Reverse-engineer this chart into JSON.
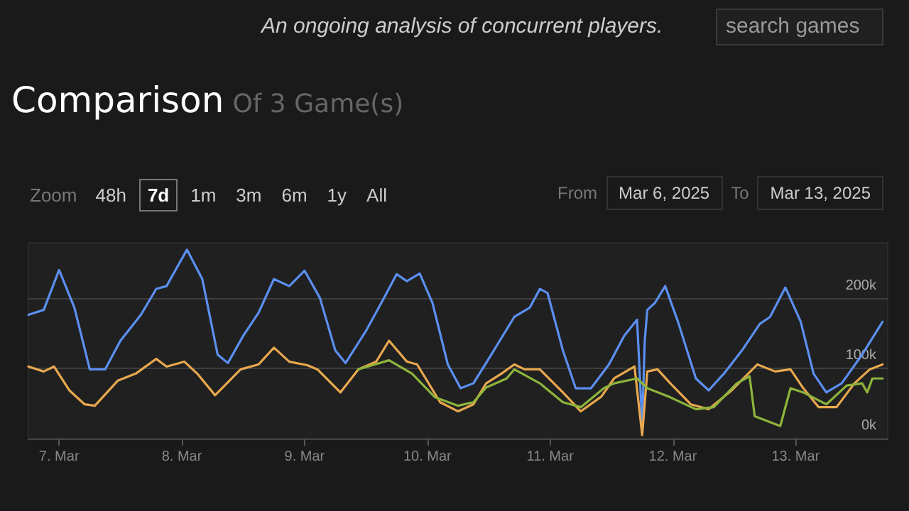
{
  "chart_data": {
    "type": "line",
    "title": "Comparison",
    "subtitle": "Of 3 Game(s)",
    "annotations": [
      "An ongoing analysis of concurrent players.",
      "search games",
      "Zoom",
      "48h",
      "7d",
      "1m",
      "3m",
      "6m",
      "1y",
      "All",
      "From",
      "Mar 6, 2025",
      "To",
      "Mar 13, 2025"
    ],
    "xlim": [
      "2025-03-06T18:00",
      "2025-03-13T18:00"
    ],
    "xticks": [
      {
        "value": "2025-03-07",
        "label": "7. Mar"
      },
      {
        "value": "2025-03-08",
        "label": "8. Mar"
      },
      {
        "value": "2025-03-09",
        "label": "9. Mar"
      },
      {
        "value": "2025-03-10",
        "label": "10. Mar"
      },
      {
        "value": "2025-03-11",
        "label": "11. Mar"
      },
      {
        "value": "2025-03-12",
        "label": "12. Mar"
      },
      {
        "value": "2025-03-13",
        "label": "13. Mar"
      }
    ],
    "ylim": [
      0,
      280000
    ],
    "yticks": [
      {
        "value": 0,
        "label": "0k"
      },
      {
        "value": 100000,
        "label": "100k"
      },
      {
        "value": 200000,
        "label": "200k"
      }
    ],
    "grid": "y",
    "marker": "none",
    "line_style": "solid",
    "series": [
      {
        "color": "#5b8ff0",
        "x": [
          "2025-03-06T18:00",
          "2025-03-06T21:00",
          "2025-03-07T00:00",
          "2025-03-07T03:00",
          "2025-03-07T06:00",
          "2025-03-07T09:00",
          "2025-03-07T12:00",
          "2025-03-07T16:00",
          "2025-03-07T19:00",
          "2025-03-07T21:00",
          "2025-03-08T01:00",
          "2025-03-08T04:00",
          "2025-03-08T07:00",
          "2025-03-08T09:00",
          "2025-03-08T12:00",
          "2025-03-08T15:00",
          "2025-03-08T18:00",
          "2025-03-08T21:00",
          "2025-03-09T00:00",
          "2025-03-09T03:00",
          "2025-03-09T06:00",
          "2025-03-09T08:00",
          "2025-03-09T12:00",
          "2025-03-09T15:00",
          "2025-03-09T18:00",
          "2025-03-09T20:00",
          "2025-03-09T22:30",
          "2025-03-10T01:00",
          "2025-03-10T04:00",
          "2025-03-10T06:30",
          "2025-03-10T09:00",
          "2025-03-10T12:30",
          "2025-03-10T17:00",
          "2025-03-10T20:00",
          "2025-03-10T22:00",
          "2025-03-10T23:30",
          "2025-03-11T02:30",
          "2025-03-11T05:00",
          "2025-03-11T08:00",
          "2025-03-11T11:30",
          "2025-03-11T14:30",
          "2025-03-11T17:00",
          "2025-03-11T18:00",
          "2025-03-11T18:30",
          "2025-03-11T19:00",
          "2025-03-11T20:30",
          "2025-03-11T22:30",
          "2025-03-12T01:00",
          "2025-03-12T04:30",
          "2025-03-12T07:00",
          "2025-03-12T10:00",
          "2025-03-12T13:30",
          "2025-03-12T17:00",
          "2025-03-12T19:00",
          "2025-03-12T22:00",
          "2025-03-13T01:00",
          "2025-03-13T03:30",
          "2025-03-13T06:00",
          "2025-03-13T09:00",
          "2025-03-13T13:00",
          "2025-03-13T17:00"
        ],
        "values": [
          177000,
          184000,
          241000,
          187000,
          99000,
          99000,
          140000,
          177000,
          214000,
          218000,
          270000,
          228000,
          120000,
          108000,
          147000,
          180000,
          228000,
          218000,
          240000,
          201000,
          126000,
          108000,
          154000,
          194000,
          235000,
          225000,
          236000,
          194000,
          106000,
          72000,
          79000,
          120000,
          174000,
          187000,
          214000,
          208000,
          126000,
          72000,
          72000,
          106000,
          147000,
          170000,
          20000,
          140000,
          184000,
          194000,
          218000,
          167000,
          86000,
          69000,
          93000,
          126000,
          164000,
          174000,
          216000,
          167000,
          93000,
          66000,
          79000,
          120000,
          167000
        ]
      },
      {
        "color": "#e8a84e",
        "x": [
          "2025-03-06T18:00",
          "2025-03-06T21:00",
          "2025-03-06T23:00",
          "2025-03-07T02:00",
          "2025-03-07T05:00",
          "2025-03-07T07:00",
          "2025-03-07T11:30",
          "2025-03-07T15:00",
          "2025-03-07T19:00",
          "2025-03-07T21:00",
          "2025-03-08T00:30",
          "2025-03-08T03:00",
          "2025-03-08T06:30",
          "2025-03-08T11:30",
          "2025-03-08T15:00",
          "2025-03-08T18:00",
          "2025-03-08T21:00",
          "2025-03-09T00:30",
          "2025-03-09T02:30",
          "2025-03-09T07:00",
          "2025-03-09T10:30",
          "2025-03-09T14:00",
          "2025-03-09T16:30",
          "2025-03-09T20:00",
          "2025-03-09T22:00",
          "2025-03-10T02:30",
          "2025-03-10T06:00",
          "2025-03-10T09:00",
          "2025-03-10T11:30",
          "2025-03-10T14:30",
          "2025-03-10T17:00",
          "2025-03-10T19:00",
          "2025-03-10T22:00",
          "2025-03-11T02:30",
          "2025-03-11T06:00",
          "2025-03-11T10:00",
          "2025-03-11T12:30",
          "2025-03-11T16:30",
          "2025-03-11T18:00",
          "2025-03-11T19:00",
          "2025-03-11T21:00",
          "2025-03-11T23:30",
          "2025-03-12T03:30",
          "2025-03-12T07:00",
          "2025-03-12T11:30",
          "2025-03-12T16:30",
          "2025-03-12T20:00",
          "2025-03-12T23:00",
          "2025-03-13T01:30",
          "2025-03-13T04:30",
          "2025-03-13T08:00",
          "2025-03-13T11:30",
          "2025-03-13T14:30",
          "2025-03-13T17:00"
        ],
        "values": [
          103000,
          96000,
          103000,
          69000,
          49000,
          47000,
          83000,
          93000,
          114000,
          103000,
          110000,
          93000,
          62000,
          99000,
          106000,
          130000,
          110000,
          105000,
          99000,
          66000,
          99000,
          110000,
          140000,
          110000,
          106000,
          52000,
          39000,
          49000,
          79000,
          93000,
          106000,
          99000,
          99000,
          66000,
          39000,
          60000,
          86000,
          103000,
          5000,
          96000,
          99000,
          79000,
          49000,
          42000,
          69000,
          106000,
          96000,
          99000,
          72000,
          45000,
          45000,
          79000,
          99000,
          106000
        ]
      },
      {
        "color": "#8db43c",
        "x": [
          "2025-03-09T10:30",
          "2025-03-09T16:30",
          "2025-03-09T21:00",
          "2025-03-10T01:30",
          "2025-03-10T06:00",
          "2025-03-10T09:00",
          "2025-03-10T11:30",
          "2025-03-10T15:30",
          "2025-03-10T17:00",
          "2025-03-10T22:00",
          "2025-03-11T02:30",
          "2025-03-11T06:00",
          "2025-03-11T10:30",
          "2025-03-11T12:30",
          "2025-03-11T17:00",
          "2025-03-11T19:00",
          "2025-03-11T23:30",
          "2025-03-12T04:30",
          "2025-03-12T08:00",
          "2025-03-12T12:30",
          "2025-03-12T15:00",
          "2025-03-12T16:00",
          "2025-03-12T21:00",
          "2025-03-12T23:00",
          "2025-03-13T01:30",
          "2025-03-13T06:00",
          "2025-03-13T10:00",
          "2025-03-13T13:00",
          "2025-03-13T14:00",
          "2025-03-13T15:00",
          "2025-03-13T17:00"
        ],
        "values": [
          99000,
          112000,
          93000,
          59000,
          47000,
          52000,
          73000,
          86000,
          99000,
          79000,
          52000,
          45000,
          72000,
          79000,
          86000,
          72000,
          59000,
          42000,
          45000,
          79000,
          89000,
          32000,
          18000,
          72000,
          66000,
          49000,
          76000,
          79000,
          66000,
          86000,
          86000
        ]
      }
    ]
  }
}
